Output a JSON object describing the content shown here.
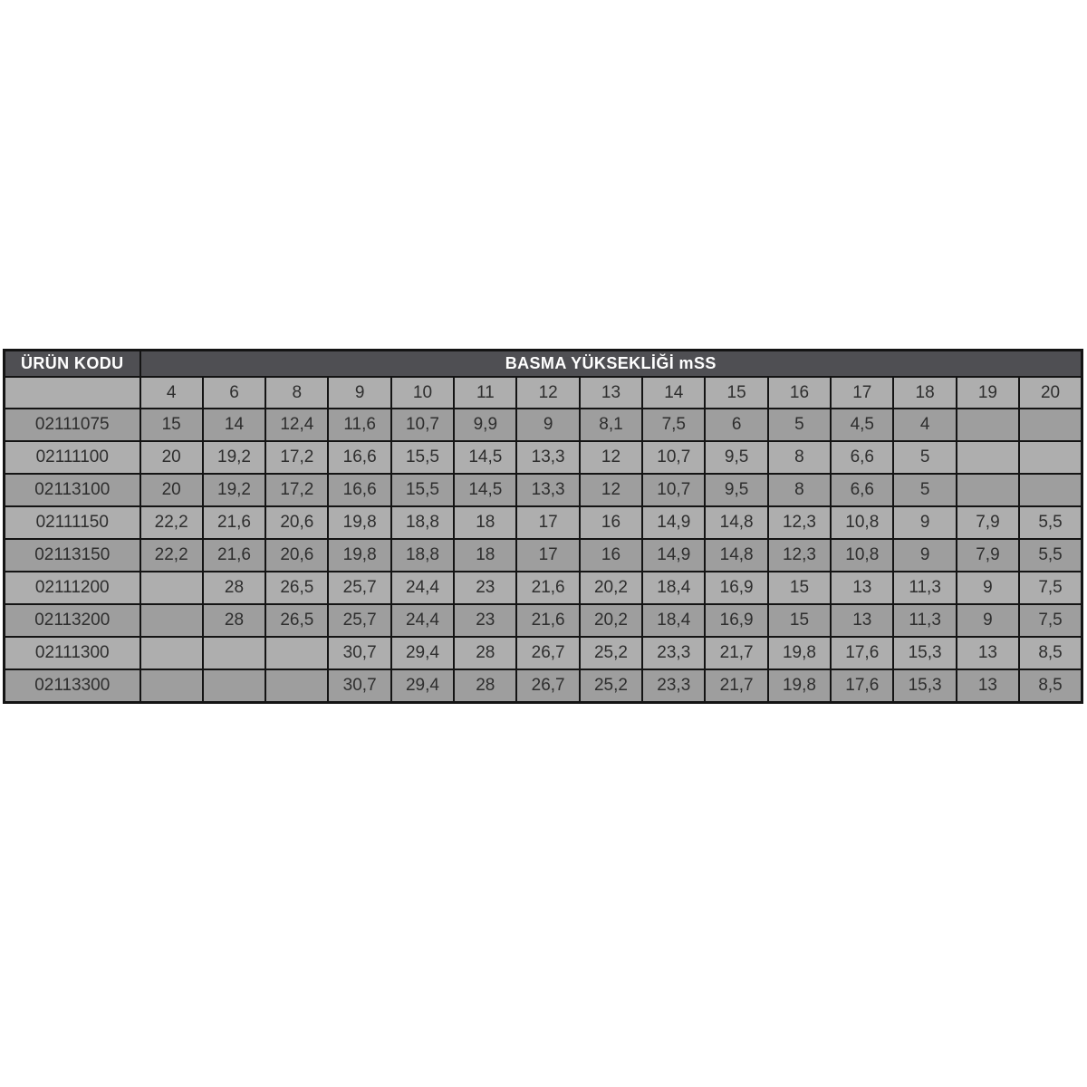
{
  "chart_data": {
    "type": "table",
    "corner_header": "ÜRÜN KODU",
    "title": "BASMA YÜKSEKLİĞİ mSS",
    "columns": [
      "4",
      "6",
      "8",
      "9",
      "10",
      "11",
      "12",
      "13",
      "14",
      "15",
      "16",
      "17",
      "18",
      "19",
      "20"
    ],
    "rows": [
      {
        "code": "02111075",
        "values": [
          "15",
          "14",
          "12,4",
          "11,6",
          "10,7",
          "9,9",
          "9",
          "8,1",
          "7,5",
          "6",
          "5",
          "4,5",
          "4",
          "",
          ""
        ]
      },
      {
        "code": "02111100",
        "values": [
          "20",
          "19,2",
          "17,2",
          "16,6",
          "15,5",
          "14,5",
          "13,3",
          "12",
          "10,7",
          "9,5",
          "8",
          "6,6",
          "5",
          "",
          ""
        ]
      },
      {
        "code": "02113100",
        "values": [
          "20",
          "19,2",
          "17,2",
          "16,6",
          "15,5",
          "14,5",
          "13,3",
          "12",
          "10,7",
          "9,5",
          "8",
          "6,6",
          "5",
          "",
          ""
        ]
      },
      {
        "code": "02111150",
        "values": [
          "22,2",
          "21,6",
          "20,6",
          "19,8",
          "18,8",
          "18",
          "17",
          "16",
          "14,9",
          "14,8",
          "12,3",
          "10,8",
          "9",
          "7,9",
          "5,5"
        ]
      },
      {
        "code": "02113150",
        "values": [
          "22,2",
          "21,6",
          "20,6",
          "19,8",
          "18,8",
          "18",
          "17",
          "16",
          "14,9",
          "14,8",
          "12,3",
          "10,8",
          "9",
          "7,9",
          "5,5"
        ]
      },
      {
        "code": "02111200",
        "values": [
          "",
          "28",
          "26,5",
          "25,7",
          "24,4",
          "23",
          "21,6",
          "20,2",
          "18,4",
          "16,9",
          "15",
          "13",
          "11,3",
          "9",
          "7,5"
        ]
      },
      {
        "code": "02113200",
        "values": [
          "",
          "28",
          "26,5",
          "25,7",
          "24,4",
          "23",
          "21,6",
          "20,2",
          "18,4",
          "16,9",
          "15",
          "13",
          "11,3",
          "9",
          "7,5"
        ]
      },
      {
        "code": "02111300",
        "values": [
          "",
          "",
          "",
          "30,7",
          "29,4",
          "28",
          "26,7",
          "25,2",
          "23,3",
          "21,7",
          "19,8",
          "17,6",
          "15,3",
          "13",
          "8,5"
        ]
      },
      {
        "code": "02113300",
        "values": [
          "",
          "",
          "",
          "30,7",
          "29,4",
          "28",
          "26,7",
          "25,2",
          "23,3",
          "21,7",
          "19,8",
          "17,6",
          "15,3",
          "13",
          "8,5"
        ]
      }
    ],
    "layout": {
      "first_row_shade": "dark",
      "alternating_shades": true,
      "grid": true
    }
  },
  "colors": {
    "header_bg": "#4f4f53",
    "header_text": "#ffffff",
    "row_light": "#aeaeae",
    "row_dark": "#9e9e9e",
    "border": "#141414",
    "cell_text": "#2e2e2e",
    "page_bg": "#ffffff"
  }
}
